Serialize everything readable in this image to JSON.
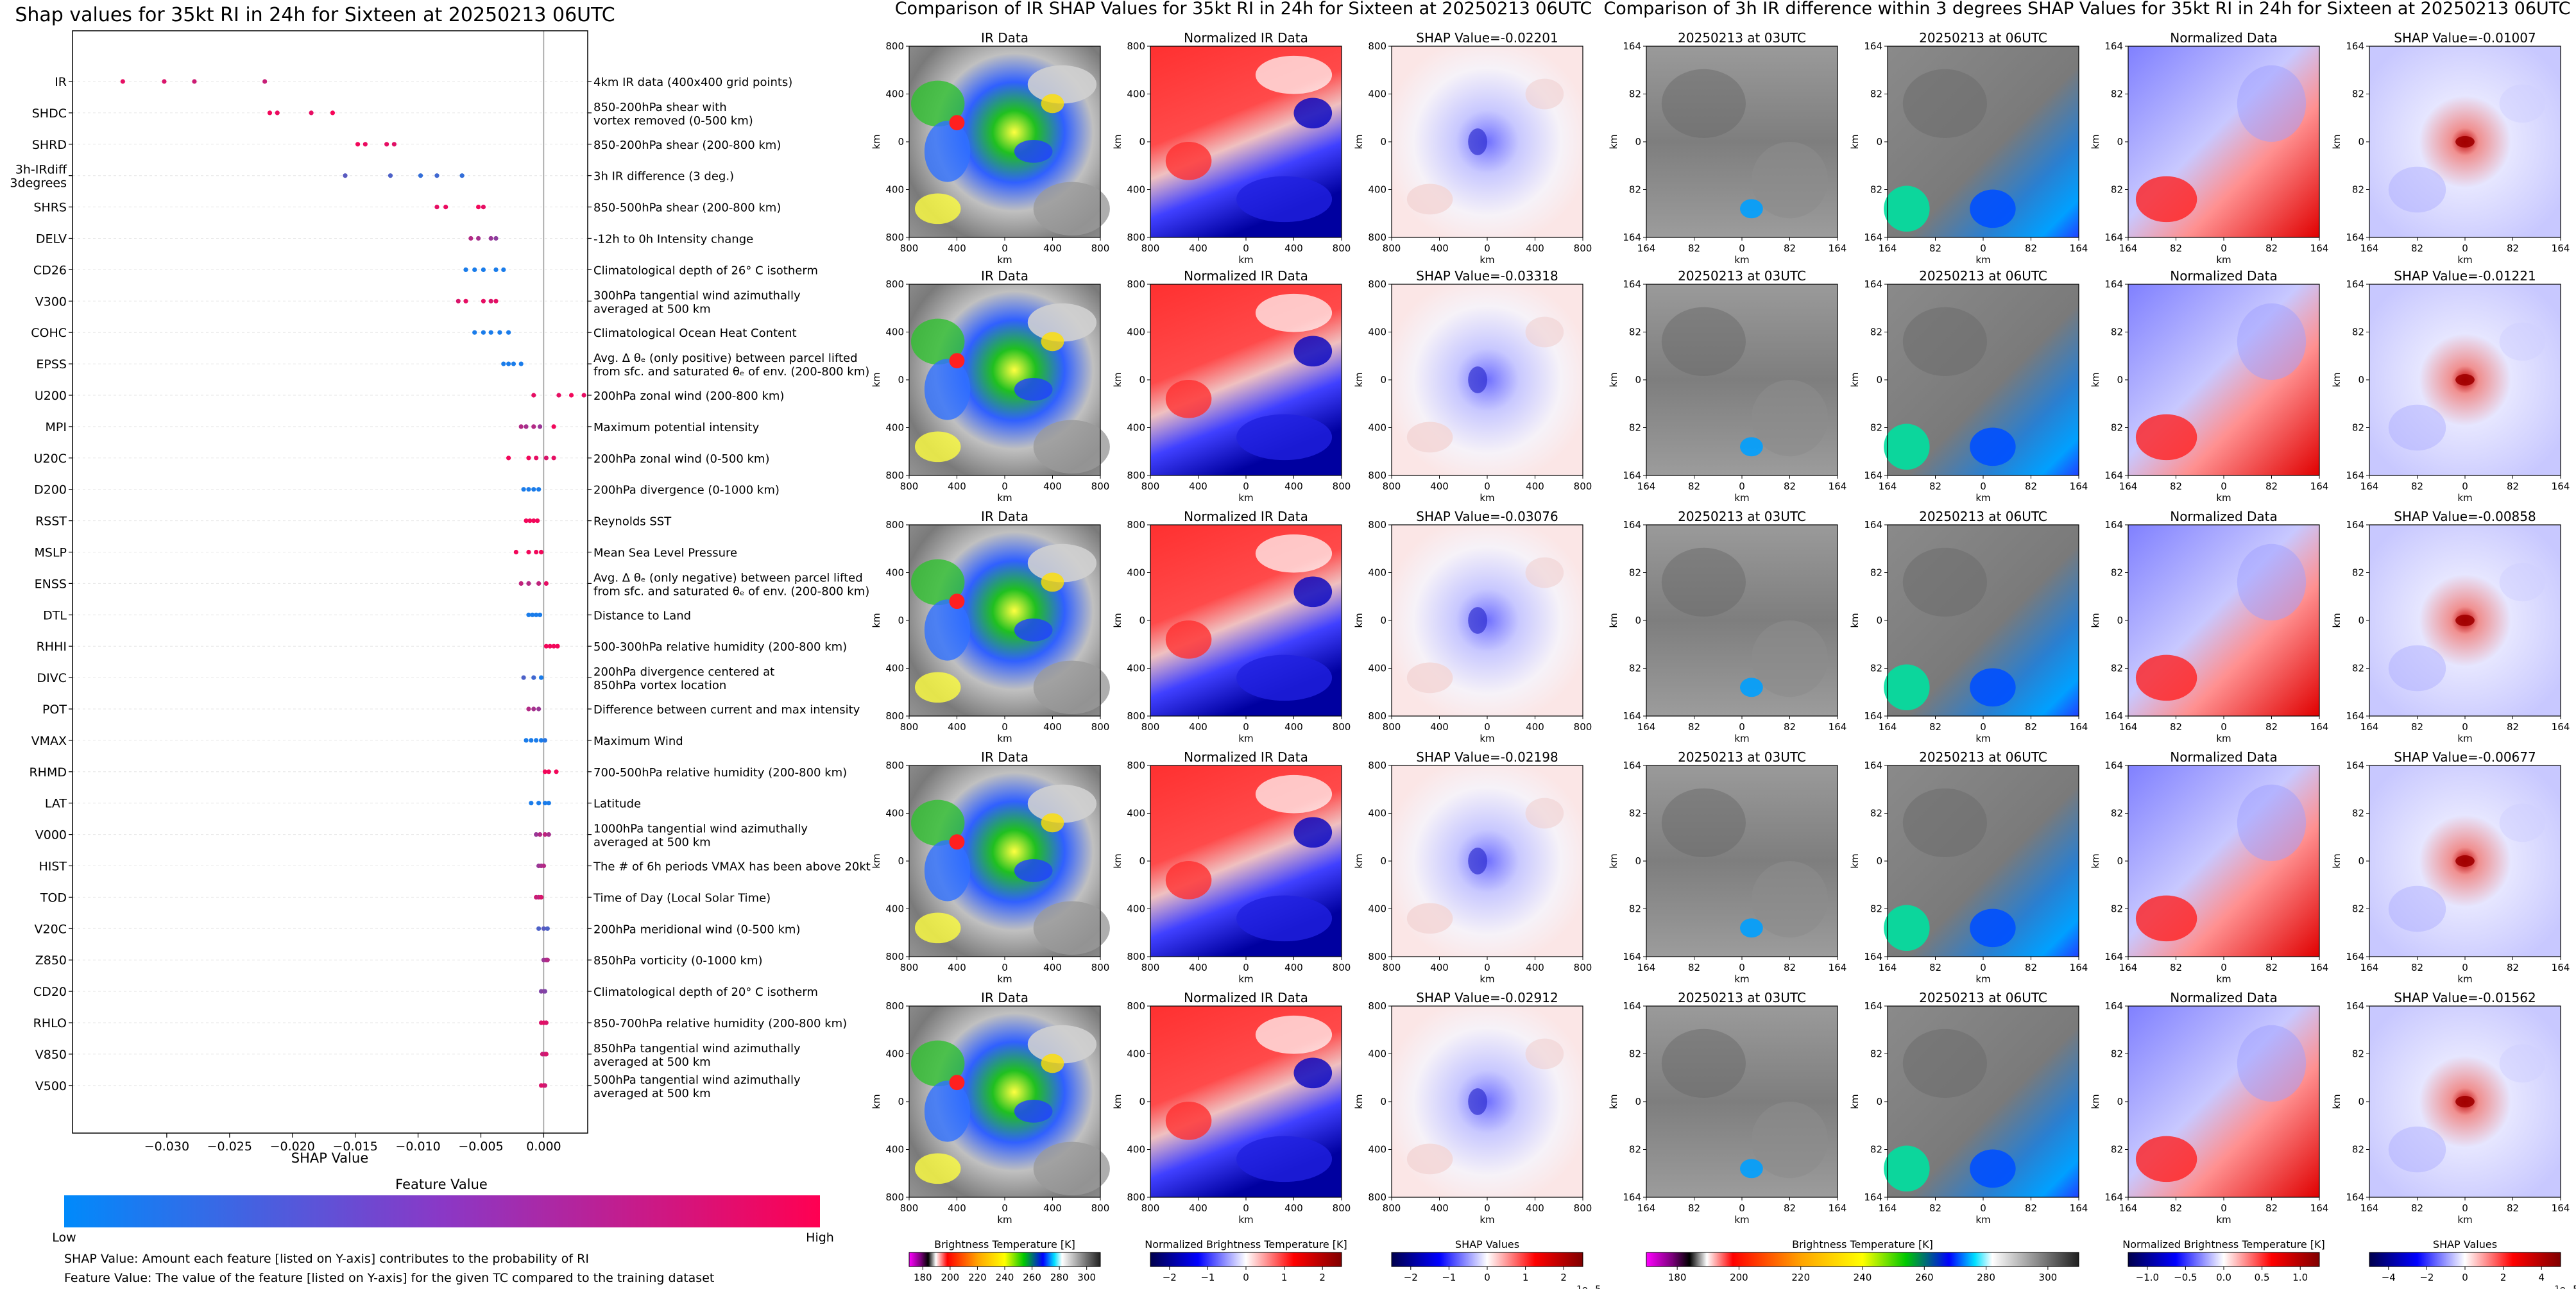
{
  "colors": {
    "low": "#008afb",
    "high": "#ff0052",
    "frame": "#000000",
    "zero_line": "#999999",
    "grid": "#e6e6e6"
  },
  "chart_data": [
    {
      "type": "scatter",
      "title": "Shap values for 35kt RI in 24h for Sixteen at 20250213 06UTC",
      "xlabel": "SHAP Value",
      "xlim": [
        -0.0375,
        0.0035
      ],
      "xticks": [
        "−0.030",
        "−0.025",
        "−0.020",
        "−0.015",
        "−0.010",
        "−0.005",
        "0.000"
      ],
      "xtick_values": [
        -0.03,
        -0.025,
        -0.02,
        -0.015,
        -0.01,
        -0.005,
        0.0
      ],
      "colorbar": {
        "title": "Feature Value",
        "low": "Low",
        "high": "High"
      },
      "notes": [
        "SHAP Value: Amount each feature [listed on Y-axis] contributes to the probability of RI",
        "Feature Value: The value of the feature [listed on Y-axis] for the given TC compared to the training dataset"
      ],
      "features": [
        {
          "code": "IR",
          "desc": "4km IR data (400x400 grid points)",
          "points": [
            [
              -0.0335,
              0.9
            ],
            [
              -0.0302,
              0.85
            ],
            [
              -0.0278,
              0.8
            ],
            [
              -0.0222,
              0.78
            ]
          ]
        },
        {
          "code": "SHDC",
          "desc": "850-200hPa shear with\nvortex removed (0-500 km)",
          "points": [
            [
              -0.0218,
              0.95
            ],
            [
              -0.0212,
              0.92
            ],
            [
              -0.0185,
              0.9
            ],
            [
              -0.0168,
              0.97
            ]
          ]
        },
        {
          "code": "SHRD",
          "desc": "850-200hPa shear (200-800 km)",
          "points": [
            [
              -0.0148,
              0.95
            ],
            [
              -0.0142,
              0.92
            ],
            [
              -0.0125,
              0.9
            ],
            [
              -0.0119,
              0.88
            ]
          ]
        },
        {
          "code": "3h-IRdiff\n3degrees",
          "desc": "3h IR difference (3 deg.)",
          "points": [
            [
              -0.0158,
              0.35
            ],
            [
              -0.0122,
              0.3
            ],
            [
              -0.0098,
              0.2
            ],
            [
              -0.0085,
              0.25
            ],
            [
              -0.0065,
              0.2
            ]
          ]
        },
        {
          "code": "SHRS",
          "desc": "850-500hPa shear (200-800 km)",
          "points": [
            [
              -0.0085,
              0.9
            ],
            [
              -0.0078,
              0.92
            ],
            [
              -0.0052,
              0.95
            ],
            [
              -0.0048,
              0.9
            ]
          ]
        },
        {
          "code": "DELV",
          "desc": "-12h to 0h Intensity change",
          "points": [
            [
              -0.0058,
              0.7
            ],
            [
              -0.0052,
              0.65
            ],
            [
              -0.0042,
              0.6
            ],
            [
              -0.0038,
              0.55
            ]
          ]
        },
        {
          "code": "CD26",
          "desc": "Climatological depth of 26° C isotherm",
          "points": [
            [
              -0.0062,
              0.1
            ],
            [
              -0.0055,
              0.1
            ],
            [
              -0.0048,
              0.1
            ],
            [
              -0.0038,
              0.1
            ],
            [
              -0.0032,
              0.1
            ]
          ]
        },
        {
          "code": "V300",
          "desc": "300hPa tangential wind azimuthally\naveraged at 500 km",
          "points": [
            [
              -0.0068,
              0.85
            ],
            [
              -0.0062,
              0.9
            ],
            [
              -0.0048,
              0.9
            ],
            [
              -0.0042,
              0.85
            ],
            [
              -0.0038,
              0.9
            ]
          ]
        },
        {
          "code": "COHC",
          "desc": "Climatological Ocean Heat Content",
          "points": [
            [
              -0.0055,
              0.1
            ],
            [
              -0.0048,
              0.1
            ],
            [
              -0.0042,
              0.1
            ],
            [
              -0.0035,
              0.1
            ],
            [
              -0.0028,
              0.1
            ]
          ]
        },
        {
          "code": "EPSS",
          "desc": "Avg. Δ θₑ (only positive) between parcel lifted\nfrom sfc. and saturated θₑ of env. (200-800 km)",
          "points": [
            [
              -0.0032,
              0.1
            ],
            [
              -0.0028,
              0.1
            ],
            [
              -0.0024,
              0.1
            ],
            [
              -0.0018,
              0.1
            ]
          ]
        },
        {
          "code": "U200",
          "desc": "200hPa zonal wind (200-800 km)",
          "points": [
            [
              -0.0008,
              0.9
            ],
            [
              0.0012,
              0.9
            ],
            [
              0.0022,
              0.95
            ],
            [
              0.0032,
              0.9
            ]
          ]
        },
        {
          "code": "MPI",
          "desc": "Maximum potential intensity",
          "points": [
            [
              -0.0018,
              0.7
            ],
            [
              -0.0014,
              0.65
            ],
            [
              -0.0008,
              0.7
            ],
            [
              -0.0003,
              0.6
            ],
            [
              0.0008,
              0.95
            ]
          ]
        },
        {
          "code": "U20C",
          "desc": "200hPa zonal wind (0-500 km)",
          "points": [
            [
              -0.0028,
              0.95
            ],
            [
              -0.0012,
              0.95
            ],
            [
              -0.0006,
              0.9
            ],
            [
              0.0002,
              0.85
            ],
            [
              0.0008,
              0.9
            ]
          ]
        },
        {
          "code": "D200",
          "desc": "200hPa divergence (0-1000 km)",
          "points": [
            [
              -0.0016,
              0.1
            ],
            [
              -0.0012,
              0.1
            ],
            [
              -0.0008,
              0.1
            ],
            [
              -0.0004,
              0.1
            ]
          ]
        },
        {
          "code": "RSST",
          "desc": "Reynolds SST",
          "points": [
            [
              -0.0014,
              0.95
            ],
            [
              -0.0011,
              0.95
            ],
            [
              -0.0008,
              0.95
            ],
            [
              -0.0005,
              0.95
            ]
          ]
        },
        {
          "code": "MSLP",
          "desc": "Mean Sea Level Pressure",
          "points": [
            [
              -0.0022,
              0.95
            ],
            [
              -0.0012,
              0.95
            ],
            [
              -0.0006,
              0.95
            ],
            [
              -0.0002,
              0.95
            ]
          ]
        },
        {
          "code": "ENSS",
          "desc": "Avg. Δ θₑ (only negative) between parcel lifted\nfrom sfc. and saturated θₑ of env. (200-800 km)",
          "points": [
            [
              -0.0018,
              0.75
            ],
            [
              -0.0012,
              0.7
            ],
            [
              -0.0004,
              0.75
            ],
            [
              0.0002,
              0.9
            ]
          ]
        },
        {
          "code": "DTL",
          "desc": "Distance to Land",
          "points": [
            [
              -0.0012,
              0.1
            ],
            [
              -0.0009,
              0.1
            ],
            [
              -0.0006,
              0.1
            ],
            [
              -0.0003,
              0.1
            ]
          ]
        },
        {
          "code": "RHHI",
          "desc": "500-300hPa relative humidity (200-800 km)",
          "points": [
            [
              0.0002,
              0.95
            ],
            [
              0.0005,
              0.95
            ],
            [
              0.0008,
              0.95
            ],
            [
              0.0011,
              0.95
            ]
          ]
        },
        {
          "code": "DIVC",
          "desc": "200hPa divergence centered at\n850hPa vortex location",
          "points": [
            [
              -0.0016,
              0.3
            ],
            [
              -0.0008,
              0.25
            ],
            [
              -0.0002,
              0.1
            ]
          ]
        },
        {
          "code": "POT",
          "desc": "Difference between current and max intensity",
          "points": [
            [
              -0.0012,
              0.7
            ],
            [
              -0.0008,
              0.65
            ],
            [
              -0.0004,
              0.6
            ]
          ]
        },
        {
          "code": "VMAX",
          "desc": "Maximum Wind",
          "points": [
            [
              -0.0014,
              0.1
            ],
            [
              -0.001,
              0.1
            ],
            [
              -0.0006,
              0.1
            ],
            [
              -0.0002,
              0.1
            ],
            [
              0.0001,
              0.15
            ]
          ]
        },
        {
          "code": "RHMD",
          "desc": "700-500hPa relative humidity (200-800 km)",
          "points": [
            [
              0.0001,
              0.95
            ],
            [
              0.0004,
              0.95
            ],
            [
              0.001,
              0.95
            ]
          ]
        },
        {
          "code": "LAT",
          "desc": "Latitude",
          "points": [
            [
              -0.001,
              0.1
            ],
            [
              -0.0004,
              0.1
            ],
            [
              0.0001,
              0.1
            ],
            [
              0.0004,
              0.1
            ]
          ]
        },
        {
          "code": "V000",
          "desc": "1000hPa tangential wind azimuthally\naveraged at 500 km",
          "points": [
            [
              -0.0006,
              0.6
            ],
            [
              -0.0003,
              0.7
            ],
            [
              0.0001,
              0.75
            ],
            [
              0.0004,
              0.65
            ]
          ]
        },
        {
          "code": "HIST",
          "desc": "The # of 6h periods VMAX has been above 20kt",
          "points": [
            [
              -0.0004,
              0.6
            ],
            [
              -0.0002,
              0.65
            ],
            [
              0.0,
              0.7
            ]
          ]
        },
        {
          "code": "TOD",
          "desc": "Time of Day (Local Solar Time)",
          "points": [
            [
              -0.0006,
              0.8
            ],
            [
              -0.0004,
              0.75
            ],
            [
              -0.0002,
              0.85
            ]
          ]
        },
        {
          "code": "V20C",
          "desc": "200hPa meridional wind (0-500 km)",
          "points": [
            [
              -0.0004,
              0.3
            ],
            [
              0.0,
              0.35
            ],
            [
              0.0003,
              0.3
            ]
          ]
        },
        {
          "code": "Z850",
          "desc": "850hPa vorticity (0-1000 km)",
          "points": [
            [
              0.0,
              0.6
            ],
            [
              0.0002,
              0.65
            ],
            [
              0.0003,
              0.7
            ]
          ]
        },
        {
          "code": "CD20",
          "desc": "Climatological depth of 20° C isotherm",
          "points": [
            [
              -0.0002,
              0.5
            ],
            [
              0.0,
              0.55
            ],
            [
              0.0001,
              0.5
            ]
          ]
        },
        {
          "code": "RHLO",
          "desc": "850-700hPa relative humidity (200-800 km)",
          "points": [
            [
              -0.0002,
              0.85
            ],
            [
              0.0,
              0.9
            ],
            [
              0.0002,
              0.85
            ]
          ]
        },
        {
          "code": "V850",
          "desc": "850hPa tangential wind azimuthally\naveraged at 500 km",
          "points": [
            [
              -0.0001,
              0.8
            ],
            [
              0.0001,
              0.75
            ],
            [
              0.0002,
              0.85
            ]
          ]
        },
        {
          "code": "V500",
          "desc": "500hPa tangential wind azimuthally\naveraged at 500 km",
          "points": [
            [
              -0.0002,
              0.85
            ],
            [
              0.0,
              0.9
            ],
            [
              0.0001,
              0.8
            ]
          ]
        }
      ]
    },
    {
      "type": "heatmap",
      "title": "Comparison of IR SHAP Values for 35kt RI in 24h for Sixteen at 20250213 06UTC",
      "panel_titles": [
        "IR Data",
        "Normalized IR Data",
        "SHAP Value"
      ],
      "shap_values": [
        "SHAP Value=-0.02201",
        "SHAP Value=-0.03318",
        "SHAP Value=-0.03076",
        "SHAP Value=-0.02198",
        "SHAP Value=-0.02912"
      ],
      "xlabel": "km",
      "ylabel": "km",
      "xticks": [
        "800",
        "400",
        "0",
        "400",
        "800"
      ],
      "yticks": [
        "800",
        "400",
        "0",
        "400",
        "800"
      ],
      "colorbars": [
        {
          "label": "Brightness Temperature [K]",
          "ticks": [
            "180",
            "200",
            "220",
            "240",
            "260",
            "280",
            "300"
          ]
        },
        {
          "label": "Normalized Brightness Temperature [K]",
          "ticks": [
            "−2",
            "−1",
            "0",
            "1",
            "2"
          ]
        },
        {
          "label": "SHAP Values",
          "ticks": [
            "−2",
            "−1",
            "0",
            "1",
            "2"
          ],
          "scale": "1e−5"
        }
      ]
    },
    {
      "type": "heatmap",
      "title": "Comparison of 3h IR difference within 3 degrees SHAP Values for 35kt RI in 24h for Sixteen at 20250213 06UTC",
      "panel_titles": [
        "20250213 at 03UTC",
        "20250213 at 06UTC",
        "Normalized Data",
        "SHAP Value"
      ],
      "shap_values": [
        "SHAP Value=-0.01007",
        "SHAP Value=-0.01221",
        "SHAP Value=-0.00858",
        "SHAP Value=-0.00677",
        "SHAP Value=-0.01562"
      ],
      "xlabel": "km",
      "ylabel": "km",
      "xticks": [
        "164",
        "82",
        "0",
        "82",
        "164"
      ],
      "yticks": [
        "164",
        "82",
        "0",
        "82",
        "164"
      ],
      "colorbars": [
        {
          "label": "Brightness Temperature [K]",
          "ticks": [
            "180",
            "200",
            "220",
            "240",
            "260",
            "280",
            "300"
          ]
        },
        {
          "label": "Normalized Brightness Temperature [K]",
          "ticks": [
            "−1.0",
            "−0.5",
            "0.0",
            "0.5",
            "1.0"
          ]
        },
        {
          "label": "SHAP Values",
          "ticks": [
            "−4",
            "−2",
            "0",
            "2",
            "4"
          ],
          "scale": "1e−5"
        }
      ]
    }
  ]
}
